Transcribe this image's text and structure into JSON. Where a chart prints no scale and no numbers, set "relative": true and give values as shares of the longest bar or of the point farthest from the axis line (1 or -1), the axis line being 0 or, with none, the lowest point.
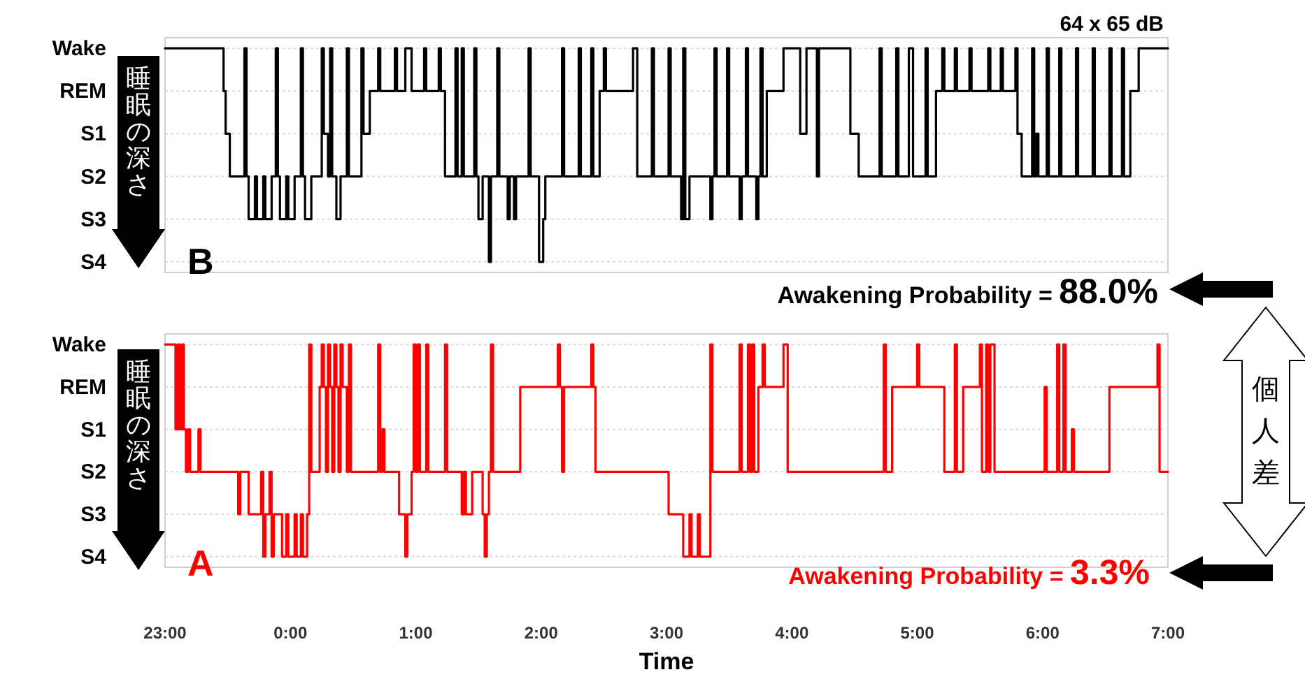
{
  "chart_data": [
    {
      "type": "step",
      "xlim": [
        "2000-01-01T23:00",
        "2000-01-02T07:00"
      ],
      "tick_labels": "y",
      "grid": "y",
      "line_style": "solid",
      "relative": true,
      "series": [
        {
          "color": "#000000",
          "x": [
            "2000-01-01T23:00",
            "2000-01-01T23:28",
            "2000-01-01T23:29",
            "2000-01-01T23:31",
            "2000-01-01T23:38",
            "2000-01-01T23:39",
            "2000-01-01T23:40",
            "2000-01-01T23:43",
            "2000-01-01T23:44",
            "2000-01-01T23:47",
            "2000-01-01T23:48",
            "2000-01-01T23:51",
            "2000-01-01T23:53",
            "2000-01-01T23:54",
            "2000-01-01T23:55",
            "2000-01-01T23:58",
            "2000-01-01T23:59",
            "2000-01-02T00:02",
            "2000-01-02T00:05",
            "2000-01-02T00:06",
            "2000-01-02T00:07",
            "2000-01-02T00:10",
            "2000-01-02T00:15",
            "2000-01-02T00:16",
            "2000-01-02T00:18",
            "2000-01-02T00:19",
            "2000-01-02T00:20",
            "2000-01-02T00:22",
            "2000-01-02T00:24",
            "2000-01-02T00:27",
            "2000-01-02T00:28",
            "2000-01-02T00:34",
            "2000-01-02T00:35",
            "2000-01-02T00:38",
            "2000-01-02T00:42",
            "2000-01-02T00:43",
            "2000-01-02T00:50",
            "2000-01-02T00:51",
            "2000-01-02T00:55",
            "2000-01-02T00:58",
            "2000-01-02T01:04",
            "2000-01-02T01:05",
            "2000-01-02T01:11",
            "2000-01-02T01:12",
            "2000-01-02T01:14",
            "2000-01-02T01:19",
            "2000-01-02T01:20",
            "2000-01-02T01:22",
            "2000-01-02T01:23",
            "2000-01-02T01:28",
            "2000-01-02T01:29",
            "2000-01-02T01:30",
            "2000-01-02T01:32",
            "2000-01-02T01:35",
            "2000-01-02T01:36",
            "2000-01-02T01:39",
            "2000-01-02T01:40",
            "2000-01-02T01:44",
            "2000-01-02T01:45",
            "2000-01-02T01:47",
            "2000-01-02T01:48",
            "2000-01-02T01:54",
            "2000-01-02T01:55",
            "2000-01-02T01:59",
            "2000-01-02T02:01",
            "2000-01-02T02:02",
            "2000-01-02T02:10",
            "2000-01-02T02:11",
            "2000-01-02T02:18",
            "2000-01-02T02:19",
            "2000-01-02T02:24",
            "2000-01-02T02:25",
            "2000-01-02T02:28",
            "2000-01-02T02:30",
            "2000-01-02T02:31",
            "2000-01-02T02:44",
            "2000-01-02T02:46",
            "2000-01-02T02:53",
            "2000-01-02T02:54",
            "2000-01-02T03:01",
            "2000-01-02T03:02",
            "2000-01-02T03:07",
            "2000-01-02T03:08",
            "2000-01-02T03:09",
            "2000-01-02T03:11",
            "2000-01-02T03:21",
            "2000-01-02T03:22",
            "2000-01-02T03:23",
            "2000-01-02T03:24",
            "2000-01-02T03:29",
            "2000-01-02T03:30",
            "2000-01-02T03:35",
            "2000-01-02T03:36",
            "2000-01-02T03:38",
            "2000-01-02T03:39",
            "2000-01-02T03:43",
            "2000-01-02T03:44",
            "2000-01-02T03:45",
            "2000-01-02T03:46",
            "2000-01-02T03:48",
            "2000-01-02T03:56",
            "2000-01-02T04:04",
            "2000-01-02T04:07",
            "2000-01-02T04:12",
            "2000-01-02T04:13",
            "2000-01-02T04:28",
            "2000-01-02T04:32",
            "2000-01-02T04:42",
            "2000-01-02T04:43",
            "2000-01-02T04:50",
            "2000-01-02T04:51",
            "2000-01-02T04:56",
            "2000-01-02T04:58",
            "2000-01-02T05:04",
            "2000-01-02T05:05",
            "2000-01-02T05:09",
            "2000-01-02T05:12",
            "2000-01-02T05:13",
            "2000-01-02T05:18",
            "2000-01-02T05:19",
            "2000-01-02T05:25",
            "2000-01-02T05:26",
            "2000-01-02T05:34",
            "2000-01-02T05:35",
            "2000-01-02T05:40",
            "2000-01-02T05:41",
            "2000-01-02T05:47",
            "2000-01-02T05:48",
            "2000-01-02T05:50",
            "2000-01-02T05:55",
            "2000-01-02T05:56",
            "2000-01-02T05:57",
            "2000-01-02T05:58",
            "2000-01-02T06:02",
            "2000-01-02T06:03",
            "2000-01-02T06:08",
            "2000-01-02T06:09",
            "2000-01-02T06:16",
            "2000-01-02T06:17",
            "2000-01-02T06:24",
            "2000-01-02T06:25",
            "2000-01-02T06:32",
            "2000-01-02T06:33",
            "2000-01-02T06:38",
            "2000-01-02T06:39",
            "2000-01-02T06:42",
            "2000-01-02T06:46",
            "2000-01-02T07:00"
          ],
          "values": [
            1,
            0.8,
            0.6,
            0.4,
            1,
            0.4,
            0.2,
            0.4,
            0.2,
            0.4,
            0.2,
            0.4,
            1,
            0.4,
            0.2,
            0.4,
            0.2,
            0.4,
            1,
            0.4,
            0.2,
            0.4,
            1,
            0.6,
            0.4,
            1,
            0.4,
            0.2,
            0.4,
            1,
            0.4,
            1,
            0.6,
            0.8,
            1,
            0.8,
            1,
            0.8,
            1,
            0.8,
            1,
            0.8,
            1,
            0.8,
            0.4,
            1,
            0.4,
            1,
            0.4,
            1,
            0.4,
            0.2,
            0.4,
            0,
            0.4,
            1,
            0.4,
            0.2,
            0.4,
            0.2,
            0.4,
            1,
            0.4,
            0,
            0.2,
            0.4,
            1,
            0.4,
            1,
            0.4,
            1,
            0.4,
            0.8,
            1,
            0.8,
            1,
            0.4,
            1,
            0.4,
            1,
            0.4,
            0.2,
            1,
            0.2,
            0.4,
            0.2,
            0.4,
            1,
            0.4,
            1,
            0.4,
            0.2,
            0.4,
            1,
            0.4,
            0.2,
            0.4,
            1,
            0.4,
            0.8,
            1,
            0.6,
            1,
            0.4,
            1,
            0.6,
            0.4,
            1,
            0.4,
            1,
            0.4,
            1,
            0.4,
            1,
            0.4,
            0.8,
            1,
            0.8,
            1,
            0.8,
            1,
            0.8,
            1,
            0.8,
            1,
            0.8,
            1,
            0.6,
            0.4,
            1,
            0.4,
            0.6,
            0.4,
            1,
            0.4,
            1,
            0.4,
            1,
            0.4,
            1,
            0.4,
            1,
            0.4,
            1,
            0.4,
            0.8,
            1,
            1
          ]
        }
      ],
      "annotations": [
        "Wake",
        "REM",
        "S1",
        "S2",
        "S3",
        "S4",
        "64 x 65 dB",
        "B",
        "Awakening Probability = 88.0%",
        "睡眠の深さ"
      ]
    },
    {
      "type": "step",
      "xlim": [
        "2000-01-01T23:00",
        "2000-01-02T07:00"
      ],
      "grid": "y",
      "line_style": "solid",
      "xlabel": "Time",
      "relative": true,
      "xticks": [
        {
          "value": "2000-01-01T23:00",
          "label": "23:00"
        },
        {
          "value": "2000-01-02T00:00",
          "label": "0:00"
        },
        {
          "value": "2000-01-02T01:00",
          "label": "1:00"
        },
        {
          "value": "2000-01-02T02:00",
          "label": "2:00"
        },
        {
          "value": "2000-01-02T03:00",
          "label": "3:00"
        },
        {
          "value": "2000-01-02T04:00",
          "label": "4:00"
        },
        {
          "value": "2000-01-02T05:00",
          "label": "5:00"
        },
        {
          "value": "2000-01-02T06:00",
          "label": "6:00"
        },
        {
          "value": "2000-01-02T07:00",
          "label": "7:00"
        }
      ],
      "series": [
        {
          "color": "#ff0000",
          "x": [
            "2000-01-01T23:00",
            "2000-01-01T23:05",
            "2000-01-01T23:06",
            "2000-01-01T23:07",
            "2000-01-01T23:08",
            "2000-01-01T23:09",
            "2000-01-01T23:10",
            "2000-01-01T23:11",
            "2000-01-01T23:12",
            "2000-01-01T23:16",
            "2000-01-01T23:17",
            "2000-01-01T23:35",
            "2000-01-01T23:36",
            "2000-01-01T23:40",
            "2000-01-01T23:46",
            "2000-01-01T23:47",
            "2000-01-01T23:48",
            "2000-01-01T23:50",
            "2000-01-01T23:51",
            "2000-01-01T23:52",
            "2000-01-01T23:56",
            "2000-01-01T23:58",
            "2000-01-01T23:59",
            "2000-01-02T00:02",
            "2000-01-02T00:03",
            "2000-01-02T00:05",
            "2000-01-02T00:06",
            "2000-01-02T00:08",
            "2000-01-02T00:09",
            "2000-01-02T00:10",
            "2000-01-02T00:14",
            "2000-01-02T00:15",
            "2000-01-02T00:16",
            "2000-01-02T00:17",
            "2000-01-02T00:18",
            "2000-01-02T00:19",
            "2000-01-02T00:20",
            "2000-01-02T00:21",
            "2000-01-02T00:22",
            "2000-01-02T00:23",
            "2000-01-02T00:24",
            "2000-01-02T00:25",
            "2000-01-02T00:27",
            "2000-01-02T00:28",
            "2000-01-02T00:29",
            "2000-01-02T00:42",
            "2000-01-02T00:43",
            "2000-01-02T00:44",
            "2000-01-02T00:45",
            "2000-01-02T00:52",
            "2000-01-02T00:55",
            "2000-01-02T00:56",
            "2000-01-02T00:58",
            "2000-01-02T00:59",
            "2000-01-02T01:00",
            "2000-01-02T01:01",
            "2000-01-02T01:02",
            "2000-01-02T01:05",
            "2000-01-02T01:06",
            "2000-01-02T01:14",
            "2000-01-02T01:15",
            "2000-01-02T01:22",
            "2000-01-02T01:23",
            "2000-01-02T01:24",
            "2000-01-02T01:27",
            "2000-01-02T01:32",
            "2000-01-02T01:33",
            "2000-01-02T01:34",
            "2000-01-02T01:35",
            "2000-01-02T01:36",
            "2000-01-02T01:37",
            "2000-01-02T01:50",
            "2000-01-02T02:08",
            "2000-01-02T02:09",
            "2000-01-02T02:10",
            "2000-01-02T02:11",
            "2000-01-02T02:24",
            "2000-01-02T02:25",
            "2000-01-02T02:26",
            "2000-01-02T03:01",
            "2000-01-02T03:08",
            "2000-01-02T03:11",
            "2000-01-02T03:12",
            "2000-01-02T03:15",
            "2000-01-02T03:16",
            "2000-01-02T03:21",
            "2000-01-02T03:22",
            "2000-01-02T03:35",
            "2000-01-02T03:36",
            "2000-01-02T03:39",
            "2000-01-02T03:40",
            "2000-01-02T03:41",
            "2000-01-02T03:42",
            "2000-01-02T03:44",
            "2000-01-02T03:46",
            "2000-01-02T03:47",
            "2000-01-02T03:56",
            "2000-01-02T03:58",
            "2000-01-02T04:44",
            "2000-01-02T04:45",
            "2000-01-02T04:48",
            "2000-01-02T05:00",
            "2000-01-02T05:01",
            "2000-01-02T05:13",
            "2000-01-02T05:18",
            "2000-01-02T05:19",
            "2000-01-02T05:22",
            "2000-01-02T05:30",
            "2000-01-02T05:31",
            "2000-01-02T05:33",
            "2000-01-02T05:34",
            "2000-01-02T05:35",
            "2000-01-02T05:37",
            "2000-01-02T06:01",
            "2000-01-02T06:02",
            "2000-01-02T06:07",
            "2000-01-02T06:08",
            "2000-01-02T06:10",
            "2000-01-02T06:11",
            "2000-01-02T06:14",
            "2000-01-02T06:15",
            "2000-01-02T06:32",
            "2000-01-02T06:55",
            "2000-01-02T06:56",
            "2000-01-02T07:00"
          ],
          "values": [
            1,
            0.6,
            1,
            0.6,
            1,
            0.6,
            0.4,
            0.6,
            0.4,
            0.6,
            0.4,
            0.2,
            0.4,
            0.2,
            0.4,
            0,
            0.2,
            0.4,
            0,
            0.2,
            0,
            0.2,
            0,
            0.2,
            0,
            0.2,
            0,
            0.2,
            1,
            0.4,
            0.8,
            1,
            0.8,
            0.4,
            1,
            0.8,
            0.4,
            1,
            0.8,
            0.4,
            1,
            0.8,
            0.4,
            1,
            0.4,
            1,
            0.4,
            0.6,
            0.4,
            0.2,
            0,
            0.2,
            0.4,
            1,
            0.4,
            1,
            0.4,
            1,
            0.4,
            1,
            0.4,
            0.2,
            0.4,
            0.2,
            0.4,
            0.2,
            0,
            0.2,
            0.4,
            1,
            0.4,
            0.8,
            1,
            0.8,
            0.4,
            0.8,
            1,
            0.8,
            0.4,
            0.2,
            0,
            0.2,
            0,
            0.2,
            0,
            1,
            0.4,
            1,
            0.4,
            1,
            0.4,
            1,
            0.4,
            0.8,
            1,
            0.8,
            1,
            0.4,
            1,
            0.4,
            0.8,
            1,
            0.8,
            0.4,
            1,
            0.4,
            0.8,
            1,
            0.4,
            1,
            0.4,
            1,
            0.4,
            0.8,
            0.4,
            1,
            0.4,
            1,
            0.4,
            0.6,
            0.4,
            0.8,
            1,
            0.4,
            0.4
          ]
        }
      ],
      "annotations": [
        "Wake",
        "REM",
        "S1",
        "S2",
        "S3",
        "S4",
        "A",
        "Awakening Probability = 3.3%",
        "睡眠の深さ",
        "個人差"
      ]
    }
  ]
}
